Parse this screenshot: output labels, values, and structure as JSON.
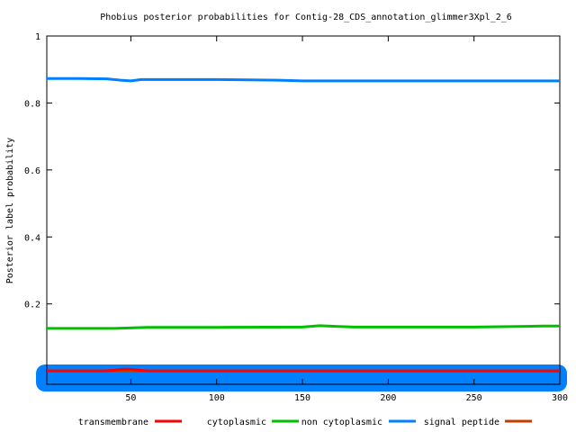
{
  "chart_data": {
    "type": "line",
    "title": "Phobius posterior probabilities for Contig-28_CDS_annotation_glimmer3Xpl_2_6",
    "xlabel": "",
    "ylabel": "Posterior label probability",
    "xlim": [
      1,
      300
    ],
    "ylim": [
      -0.04,
      1.0
    ],
    "x_ticks": [
      50,
      100,
      150,
      200,
      250,
      300
    ],
    "y_ticks": [
      0.2,
      0.4,
      0.6,
      0.8,
      1
    ],
    "grid": false,
    "legend_position": "bottom",
    "series": [
      {
        "name": "transmembrane",
        "color": "#ff0000",
        "x": [
          1,
          35,
          40,
          45,
          50,
          55,
          60,
          300
        ],
        "y": [
          0.0,
          0.0,
          0.002,
          0.005,
          0.005,
          0.002,
          0.0,
          0.0
        ]
      },
      {
        "name": "cytoplasmic",
        "color": "#00c000",
        "x": [
          1,
          20,
          40,
          60,
          80,
          100,
          150,
          160,
          180,
          200,
          250,
          280,
          290,
          300
        ],
        "y": [
          0.127,
          0.127,
          0.127,
          0.13,
          0.13,
          0.13,
          0.131,
          0.135,
          0.131,
          0.131,
          0.131,
          0.133,
          0.134,
          0.134
        ]
      },
      {
        "name": "non cytoplasmic",
        "color": "#0080ff",
        "x": [
          1,
          20,
          36,
          44,
          50,
          56,
          80,
          100,
          136,
          150,
          200,
          250,
          300
        ],
        "y": [
          0.873,
          0.873,
          0.872,
          0.868,
          0.866,
          0.87,
          0.87,
          0.87,
          0.868,
          0.866,
          0.866,
          0.866,
          0.866
        ]
      },
      {
        "name": "signal peptide",
        "color": "#c04000",
        "x": [
          1,
          300
        ],
        "y": [
          0.0,
          0.0
        ]
      }
    ]
  }
}
